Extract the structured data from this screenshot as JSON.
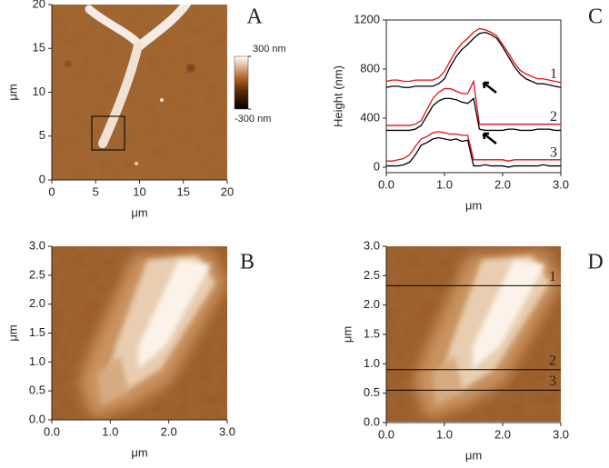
{
  "chart_data": [
    {
      "type": "image",
      "panel": "A",
      "xlabel": "μm",
      "ylabel": "μm",
      "xlim": [
        0,
        20
      ],
      "ylim": [
        0,
        20
      ],
      "xticks": [
        0,
        5,
        10,
        15,
        20
      ],
      "yticks": [
        0,
        5,
        10,
        15,
        20
      ],
      "colorbar_lim": [
        -300,
        300
      ],
      "colorbar_ticks": [
        {
          "value": 300,
          "label": "300 nm"
        },
        {
          "value": -300,
          "label": "-300 nm"
        }
      ]
    },
    {
      "type": "image",
      "panel": "B",
      "xlabel": "μm",
      "ylabel": "μm",
      "xlim": [
        0,
        3
      ],
      "ylim": [
        0,
        3
      ],
      "xticks": [
        {
          "value": 0,
          "label": "0.0"
        },
        {
          "value": 1,
          "label": "1.0"
        },
        {
          "value": 2,
          "label": "2.0"
        },
        {
          "value": 3,
          "label": "3.0"
        }
      ],
      "yticks": [
        {
          "value": 0,
          "label": "0.0"
        },
        {
          "value": 0.5,
          "label": "0.5"
        },
        {
          "value": 1,
          "label": "1.0"
        },
        {
          "value": 1.5,
          "label": "1.5"
        },
        {
          "value": 2,
          "label": "2.0"
        },
        {
          "value": 2.5,
          "label": "2.5"
        },
        {
          "value": 3,
          "label": "3.0"
        }
      ]
    },
    {
      "type": "line",
      "panel": "C",
      "xlabel": "μm",
      "ylabel": "Height (nm)",
      "xlim": [
        0,
        3
      ],
      "ylim": [
        -45,
        1200
      ],
      "xticks": [
        {
          "value": 0,
          "label": "0.0"
        },
        {
          "value": 1,
          "label": "1.0"
        },
        {
          "value": 2,
          "label": "2.0"
        },
        {
          "value": 3,
          "label": "3.0"
        }
      ],
      "yticks": [
        0,
        400,
        800,
        1200
      ],
      "x": [
        0,
        0.1,
        0.2,
        0.3,
        0.4,
        0.5,
        0.6,
        0.7,
        0.8,
        0.9,
        1,
        1.1,
        1.2,
        1.3,
        1.4,
        1.5,
        1.6,
        1.7,
        1.8,
        1.9,
        2,
        2.1,
        2.2,
        2.3,
        2.4,
        2.5,
        2.6,
        2.7,
        2.8,
        2.9,
        3
      ],
      "series": [
        {
          "color": "#e01010",
          "values": [
            700,
            710,
            710,
            700,
            700,
            710,
            710,
            710,
            710,
            730,
            780,
            870,
            950,
            1010,
            1050,
            1100,
            1130,
            1120,
            1100,
            1070,
            1000,
            930,
            850,
            790,
            760,
            740,
            720,
            720,
            710,
            700,
            690
          ]
        },
        {
          "name": "1",
          "color": "#000000",
          "values": [
            650,
            660,
            660,
            650,
            650,
            660,
            660,
            660,
            660,
            680,
            720,
            820,
            900,
            960,
            1000,
            1050,
            1090,
            1100,
            1080,
            1050,
            980,
            900,
            820,
            760,
            720,
            700,
            680,
            680,
            670,
            660,
            650
          ]
        },
        {
          "color": "#e01010",
          "values": [
            340,
            340,
            340,
            340,
            340,
            350,
            380,
            470,
            560,
            610,
            640,
            640,
            620,
            600,
            600,
            700,
            350,
            350,
            350,
            350,
            350,
            350,
            350,
            350,
            350,
            350,
            350,
            350,
            350,
            350,
            350
          ]
        },
        {
          "name": "2",
          "color": "#000000",
          "values": [
            300,
            300,
            300,
            300,
            300,
            310,
            340,
            420,
            500,
            540,
            560,
            560,
            550,
            530,
            520,
            560,
            310,
            300,
            300,
            300,
            300,
            310,
            310,
            300,
            300,
            300,
            310,
            310,
            310,
            300,
            300
          ]
        },
        {
          "color": "#e01010",
          "values": [
            50,
            50,
            60,
            70,
            100,
            170,
            230,
            250,
            280,
            290,
            280,
            270,
            270,
            260,
            260,
            60,
            60,
            60,
            60,
            60,
            60,
            50,
            60,
            60,
            60,
            60,
            60,
            60,
            60,
            60,
            60
          ]
        },
        {
          "name": "3",
          "color": "#000000",
          "values": [
            10,
            10,
            10,
            20,
            40,
            100,
            180,
            200,
            230,
            240,
            230,
            220,
            230,
            210,
            220,
            10,
            10,
            20,
            10,
            10,
            10,
            0,
            10,
            10,
            10,
            10,
            10,
            20,
            10,
            10,
            10
          ]
        }
      ]
    },
    {
      "type": "image",
      "panel": "D",
      "xlabel": "μm",
      "ylabel": "μm",
      "xlim": [
        0,
        3
      ],
      "ylim": [
        0,
        3
      ],
      "xticks": [
        {
          "value": 0,
          "label": "0.0"
        },
        {
          "value": 1,
          "label": "1.0"
        },
        {
          "value": 2,
          "label": "2.0"
        },
        {
          "value": 3,
          "label": "3.0"
        }
      ],
      "yticks": [
        {
          "value": 0,
          "label": "0.0"
        },
        {
          "value": 0.5,
          "label": "0.5"
        },
        {
          "value": 1,
          "label": "1.0"
        },
        {
          "value": 1.5,
          "label": "1.5"
        },
        {
          "value": 2,
          "label": "2.0"
        },
        {
          "value": 2.5,
          "label": "2.5"
        },
        {
          "value": 3,
          "label": "3.0"
        }
      ],
      "lines": [
        {
          "label": "1",
          "y": 2.33
        },
        {
          "label": "2",
          "y": 0.9
        },
        {
          "label": "3",
          "y": 0.55
        }
      ]
    }
  ]
}
